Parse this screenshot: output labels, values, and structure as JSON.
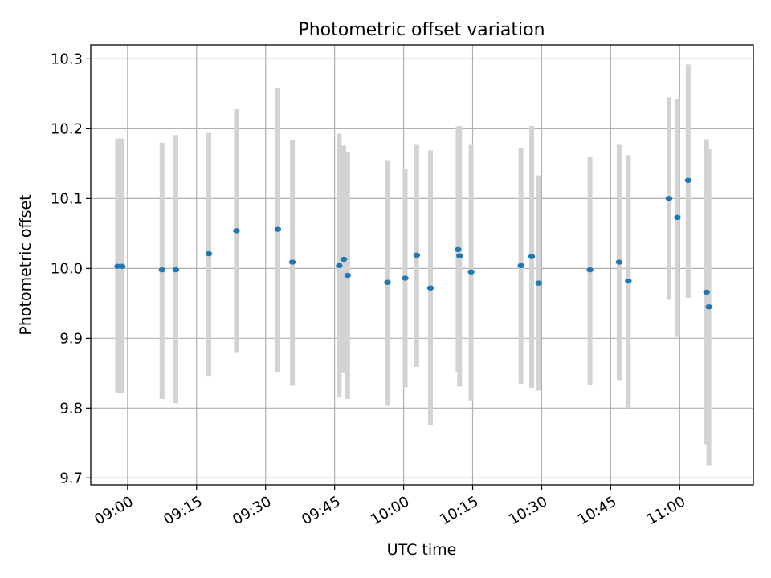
{
  "chart_data": {
    "type": "scatter",
    "title": "Photometric offset variation",
    "xlabel": "UTC time",
    "ylabel": "Photometric offset",
    "x_axis_type": "time",
    "xlim": [
      "08:52",
      "11:16"
    ],
    "ylim": [
      9.69,
      10.32
    ],
    "x_ticks": [
      "09:00",
      "09:15",
      "09:30",
      "09:45",
      "10:00",
      "10:15",
      "10:30",
      "10:45",
      "11:00"
    ],
    "y_ticks": [
      "9.7",
      "9.8",
      "9.9",
      "10.0",
      "10.1",
      "10.2",
      "10.3"
    ],
    "grid": true,
    "marker_color": "#1f77b4",
    "errorbar_color": "#d3d3d3",
    "points": [
      {
        "time": "08:57:50",
        "y": 10.003,
        "err_low": 9.821,
        "err_high": 10.186
      },
      {
        "time": "08:58:50",
        "y": 10.003,
        "err_low": 9.821,
        "err_high": 10.186
      },
      {
        "time": "09:07:30",
        "y": 9.998,
        "err_low": 9.813,
        "err_high": 10.18
      },
      {
        "time": "09:10:30",
        "y": 9.998,
        "err_low": 9.807,
        "err_high": 10.191
      },
      {
        "time": "09:17:40",
        "y": 10.021,
        "err_low": 9.846,
        "err_high": 10.194
      },
      {
        "time": "09:23:40",
        "y": 10.054,
        "err_low": 9.879,
        "err_high": 10.228
      },
      {
        "time": "09:32:40",
        "y": 10.056,
        "err_low": 9.852,
        "err_high": 10.258
      },
      {
        "time": "09:35:50",
        "y": 10.009,
        "err_low": 9.832,
        "err_high": 10.184
      },
      {
        "time": "09:46:00",
        "y": 10.004,
        "err_low": 9.815,
        "err_high": 10.193
      },
      {
        "time": "09:47:00",
        "y": 10.013,
        "err_low": 9.85,
        "err_high": 10.176
      },
      {
        "time": "09:47:50",
        "y": 9.99,
        "err_low": 9.813,
        "err_high": 10.167
      },
      {
        "time": "09:56:30",
        "y": 9.98,
        "err_low": 9.803,
        "err_high": 10.155
      },
      {
        "time": "10:00:20",
        "y": 9.986,
        "err_low": 9.83,
        "err_high": 10.142
      },
      {
        "time": "10:02:50",
        "y": 10.019,
        "err_low": 9.859,
        "err_high": 10.178
      },
      {
        "time": "10:05:50",
        "y": 9.972,
        "err_low": 9.775,
        "err_high": 10.169
      },
      {
        "time": "10:11:50",
        "y": 10.027,
        "err_low": 9.851,
        "err_high": 10.203
      },
      {
        "time": "10:12:10",
        "y": 10.018,
        "err_low": 9.831,
        "err_high": 10.204
      },
      {
        "time": "10:14:40",
        "y": 9.995,
        "err_low": 9.811,
        "err_high": 10.178
      },
      {
        "time": "10:25:30",
        "y": 10.004,
        "err_low": 9.835,
        "err_high": 10.173
      },
      {
        "time": "10:27:50",
        "y": 10.017,
        "err_low": 9.829,
        "err_high": 10.204
      },
      {
        "time": "10:29:20",
        "y": 9.979,
        "err_low": 9.825,
        "err_high": 10.133
      },
      {
        "time": "10:40:30",
        "y": 9.998,
        "err_low": 9.833,
        "err_high": 10.16
      },
      {
        "time": "10:46:50",
        "y": 10.009,
        "err_low": 9.84,
        "err_high": 10.178
      },
      {
        "time": "10:48:50",
        "y": 9.982,
        "err_low": 9.8,
        "err_high": 10.162
      },
      {
        "time": "10:57:40",
        "y": 10.1,
        "err_low": 9.955,
        "err_high": 10.245
      },
      {
        "time": "10:59:30",
        "y": 10.073,
        "err_low": 9.902,
        "err_high": 10.243
      },
      {
        "time": "11:01:50",
        "y": 10.126,
        "err_low": 9.958,
        "err_high": 10.292
      },
      {
        "time": "11:05:50",
        "y": 9.966,
        "err_low": 9.748,
        "err_high": 10.185
      },
      {
        "time": "11:06:20",
        "y": 9.945,
        "err_low": 9.718,
        "err_high": 10.171
      }
    ]
  }
}
